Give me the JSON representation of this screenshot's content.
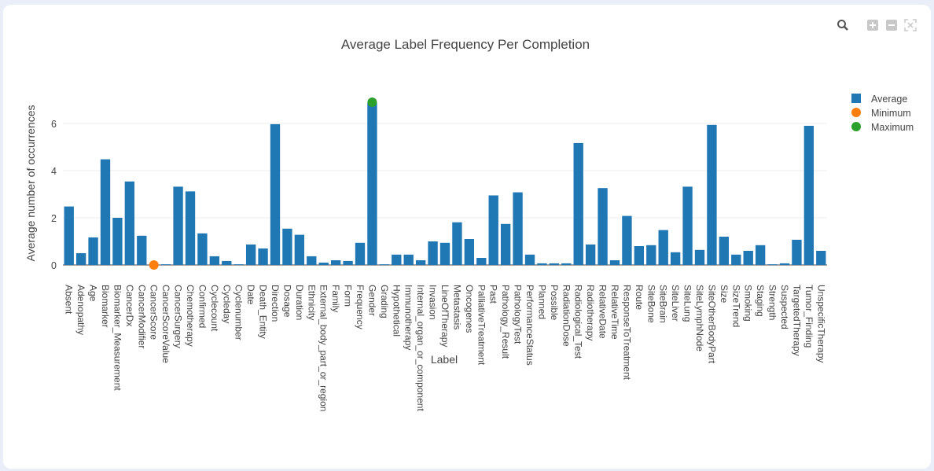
{
  "toolbar": {
    "zoom": "zoom-icon",
    "zoom_in": "zoom-in-icon",
    "zoom_out": "zoom-out-icon",
    "autoscale": "autoscale-icon"
  },
  "colors": {
    "average": "#1f77b4",
    "minimum": "#ff7f0e",
    "maximum": "#2ca02c"
  },
  "chart_data": {
    "type": "bar",
    "title": "Average Label Frequency Per Completion",
    "xlabel": "Label",
    "ylabel": "Average number of occurrences",
    "ylim": [
      0,
      7.2
    ],
    "yticks": [
      0,
      2,
      4,
      6
    ],
    "grid": true,
    "legend_position": "top-right",
    "legend": [
      "Average",
      "Minimum",
      "Maximum"
    ],
    "categories": [
      "Absent",
      "Adenopathy",
      "Age",
      "Biomarker",
      "Biomarker_Measurement",
      "CancerDx",
      "CancerModifier",
      "CancerScore",
      "CancerScoreValue",
      "CancerSurgery",
      "Chemotherapy",
      "Confirmed",
      "Cyclecount",
      "Cycleday",
      "Cyclenumber",
      "Date",
      "Death_Entity",
      "Direction",
      "Dosage",
      "Duration",
      "Ethnicity",
      "External_body_part_or_region",
      "Family",
      "Form",
      "Frequency",
      "Gender",
      "Grading",
      "Hypothetical",
      "Immunotherapy",
      "Internal_organ_or_component",
      "Invasion",
      "LineOfTherapy",
      "Metastasis",
      "Oncogenes",
      "PalliativeTreatment",
      "Past",
      "Pathology_Result",
      "PathologyTest",
      "PerformanceStatus",
      "Planned",
      "Possible",
      "RadiationDose",
      "Radiological_Test",
      "Radiotherapy",
      "RelativeDate",
      "RelativeTime",
      "ResponseToTreatment",
      "Route",
      "SiteBone",
      "SiteBrain",
      "SiteLiver",
      "SiteLung",
      "SiteLymphNode",
      "SiteOtherBodyPart",
      "Size",
      "SizeTrend",
      "Smoking",
      "Staging",
      "Strength",
      "Suspected",
      "TargetedTherapy",
      "Tumor_Finding",
      "UnspecificTherapy"
    ],
    "series": [
      {
        "name": "Average",
        "values": [
          2.48,
          0.5,
          1.17,
          4.48,
          2.0,
          3.54,
          1.24,
          0,
          0.03,
          3.32,
          3.12,
          1.34,
          0.37,
          0.17,
          0.03,
          0.87,
          0.7,
          5.97,
          1.54,
          1.28,
          0.37,
          0.1,
          0.2,
          0.17,
          0.94,
          6.88,
          0.03,
          0.44,
          0.44,
          0.2,
          1.0,
          0.94,
          1.81,
          1.1,
          0.3,
          2.95,
          1.74,
          3.08,
          0.44,
          0.07,
          0.07,
          0.07,
          5.17,
          0.87,
          3.26,
          0.2,
          2.08,
          0.8,
          0.84,
          1.48,
          0.54,
          3.32,
          0.64,
          5.94,
          1.2,
          0.44,
          0.6,
          0.84,
          0.03,
          0.07,
          1.07,
          5.9,
          0.6
        ]
      },
      {
        "name": "Minimum",
        "category": "CancerScore",
        "value": 0
      },
      {
        "name": "Maximum",
        "category": "Gender",
        "value": 6.9
      }
    ]
  }
}
